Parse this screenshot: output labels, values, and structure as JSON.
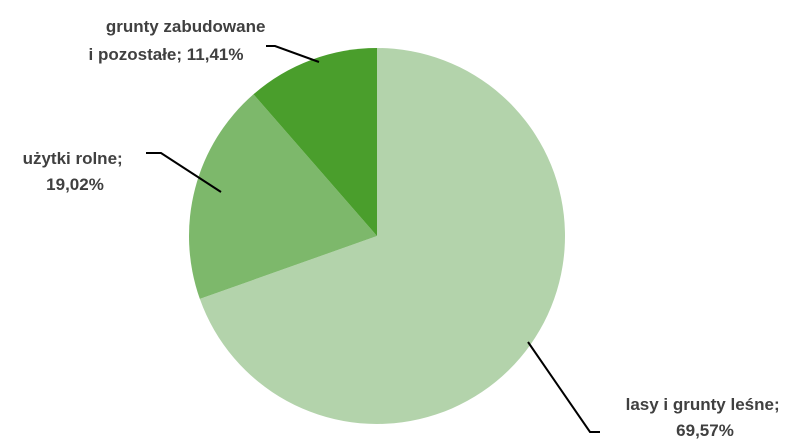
{
  "chart_data": {
    "type": "pie",
    "title": "",
    "legend": "none",
    "slices": [
      {
        "label_line1": "lasy i grunty leśne;",
        "label_line2": "69,57%",
        "value": 69.57,
        "color": "#b3d3ab"
      },
      {
        "label_line1": "użytki rolne;",
        "label_line2": "19,02%",
        "value": 19.02,
        "color": "#7db86b"
      },
      {
        "label_line1": "grunty zabudowane",
        "label_line2": "i pozostałe; 11,41%",
        "value": 11.41,
        "color": "#4a9e2c"
      }
    ]
  }
}
